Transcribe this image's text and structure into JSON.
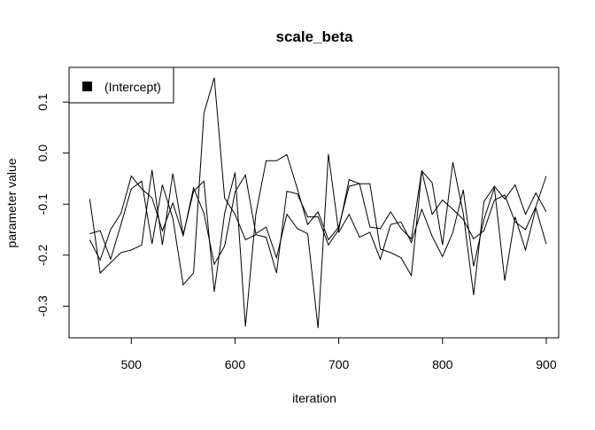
{
  "chart_data": {
    "type": "line",
    "title": "scale_beta",
    "xlabel": "iteration",
    "ylabel": "parameter value",
    "xlim": [
      440,
      912
    ],
    "ylim": [
      -0.362,
      0.168
    ],
    "xticks": [
      500,
      600,
      700,
      800,
      900
    ],
    "yticks": [
      -0.3,
      -0.2,
      -0.1,
      0.0,
      0.1
    ],
    "xtick_labels": [
      "500",
      "600",
      "700",
      "800",
      "900"
    ],
    "ytick_labels": [
      "-0.3",
      "-0.2",
      "-0.1",
      "0.0",
      "0.1"
    ],
    "legend": {
      "label": "(Intercept)",
      "position": "top-left"
    },
    "grid": false,
    "line_color": "#000000",
    "x": [
      460,
      470,
      480,
      490,
      500,
      510,
      520,
      530,
      540,
      550,
      560,
      570,
      580,
      590,
      600,
      610,
      620,
      630,
      640,
      650,
      660,
      670,
      680,
      690,
      700,
      710,
      720,
      730,
      740,
      750,
      760,
      770,
      780,
      790,
      800,
      810,
      820,
      830,
      840,
      850,
      860,
      870,
      880,
      890,
      900
    ],
    "series": [
      {
        "values": [
          -0.09,
          -0.235,
          -0.215,
          -0.195,
          -0.19,
          -0.18,
          -0.033,
          -0.18,
          -0.04,
          -0.16,
          -0.075,
          -0.055,
          -0.272,
          -0.118,
          -0.038,
          -0.34,
          -0.12,
          -0.015,
          -0.015,
          -0.003,
          -0.07,
          -0.14,
          -0.115,
          -0.17,
          -0.145,
          -0.065,
          -0.06,
          -0.06,
          -0.188,
          -0.195,
          -0.205,
          -0.24,
          -0.035,
          -0.12,
          -0.092,
          -0.11,
          -0.13,
          -0.168,
          -0.152,
          -0.092,
          -0.082,
          -0.135,
          -0.15,
          -0.105,
          -0.045
        ]
      },
      {
        "values": [
          -0.158,
          -0.152,
          -0.208,
          -0.14,
          -0.07,
          -0.055,
          -0.178,
          -0.062,
          -0.128,
          -0.258,
          -0.235,
          0.078,
          0.148,
          -0.088,
          -0.12,
          -0.17,
          -0.16,
          -0.165,
          -0.235,
          -0.075,
          -0.08,
          -0.125,
          -0.125,
          -0.18,
          -0.15,
          -0.052,
          -0.06,
          -0.145,
          -0.148,
          -0.115,
          -0.148,
          -0.168,
          -0.035,
          -0.058,
          -0.18,
          -0.018,
          -0.118,
          -0.278,
          -0.095,
          -0.065,
          -0.09,
          -0.062,
          -0.12,
          -0.078,
          -0.115
        ]
      },
      {
        "values": [
          -0.17,
          -0.21,
          -0.15,
          -0.118,
          -0.045,
          -0.07,
          -0.088,
          -0.152,
          -0.098,
          -0.162,
          -0.068,
          -0.118,
          -0.218,
          -0.182,
          -0.076,
          -0.043,
          -0.158,
          -0.145,
          -0.205,
          -0.12,
          -0.148,
          -0.158,
          -0.343,
          -0.002,
          -0.155,
          -0.12,
          -0.165,
          -0.155,
          -0.208,
          -0.14,
          -0.135,
          -0.175,
          -0.11,
          -0.163,
          -0.203,
          -0.155,
          -0.072,
          -0.222,
          -0.13,
          -0.068,
          -0.25,
          -0.125,
          -0.19,
          -0.108,
          -0.178
        ]
      }
    ]
  }
}
